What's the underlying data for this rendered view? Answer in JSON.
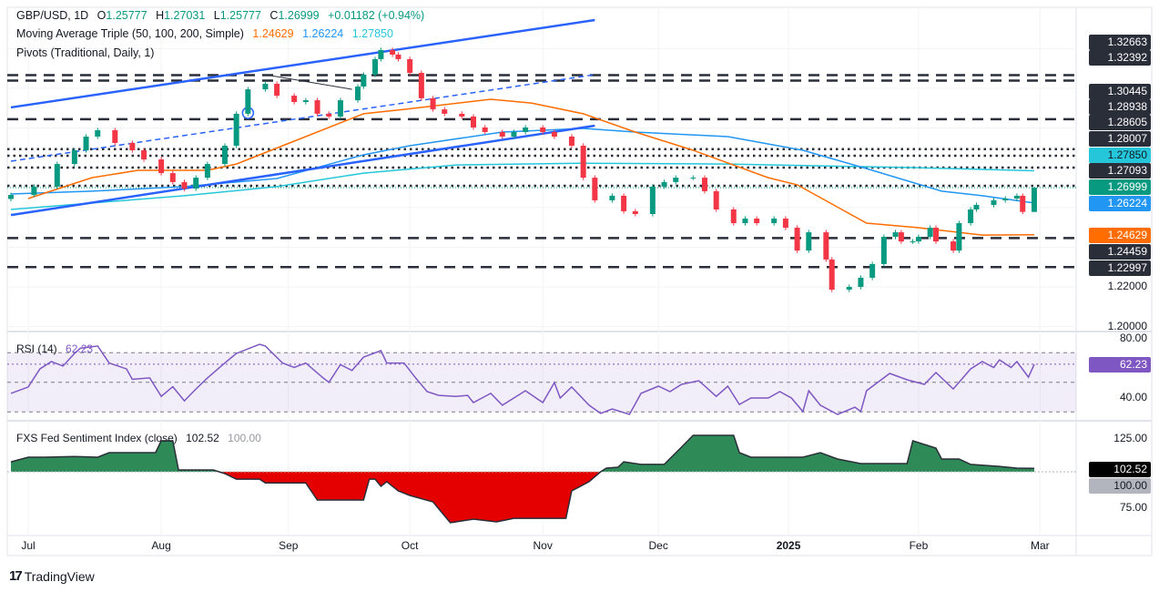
{
  "header": {
    "symbol": "GBP/USD, 1D",
    "open_label": "O",
    "open": "1.25777",
    "high_label": "H",
    "high": "1.27031",
    "low_label": "L",
    "low": "1.25777",
    "close_label": "C",
    "close": "1.26999",
    "change": "+0.01182 (+0.94%)",
    "ma_title": "Moving Average Triple (50, 100, 200, Simple)",
    "ma50": "1.24629",
    "ma100": "1.26224",
    "ma200": "1.27850",
    "pivots_title": "Pivots (Traditional, Daily, 1)"
  },
  "colors": {
    "up": "#089981",
    "down": "#f23645",
    "ma50": "#ff6d00",
    "ma100": "#2196f3",
    "ma200": "#26c6da",
    "rsi": "#7e57c2",
    "trend": "#2962ff"
  },
  "price_axis": {
    "labels": [
      {
        "text": "1.32663",
        "kind": "pivot"
      },
      {
        "text": "1.32392",
        "kind": "pivot"
      },
      {
        "text": "1.30445",
        "kind": "pivot"
      },
      {
        "text": "1.28938",
        "kind": "pivot"
      },
      {
        "text": "1.28605",
        "kind": "pivot"
      },
      {
        "text": "1.28007",
        "kind": "pivot"
      },
      {
        "text": "1.27850",
        "kind": "ma200"
      },
      {
        "text": "1.27093",
        "kind": "pivot"
      },
      {
        "text": "1.26999",
        "kind": "close"
      },
      {
        "text": "1.26224",
        "kind": "ma100"
      },
      {
        "text": "1.24629",
        "kind": "ma50"
      },
      {
        "text": "1.24459",
        "kind": "pivot"
      },
      {
        "text": "1.22997",
        "kind": "pivot"
      },
      {
        "text": "1.22000",
        "kind": "tick"
      },
      {
        "text": "1.20000",
        "kind": "tick"
      }
    ]
  },
  "rsi": {
    "title": "RSI (14)",
    "value": "62.23",
    "ticks": [
      "80.00",
      "40.00"
    ]
  },
  "sentiment": {
    "title": "FXS Fed Sentiment Index (close)",
    "value": "102.52",
    "baseline": "100.00",
    "ticks": [
      "125.00",
      "75.00"
    ]
  },
  "time_axis": {
    "labels": [
      "Jul",
      "Aug",
      "Sep",
      "Oct",
      "Nov",
      "Dec",
      "2025",
      "Feb",
      "Mar"
    ]
  },
  "branding": {
    "logo_text": "TradingView"
  },
  "chart_data": {
    "type": "candlestick",
    "title": "GBP/USD, 1D",
    "ylim": [
      1.19,
      1.35
    ],
    "months": [
      [
        "Jul",
        3
      ],
      [
        "Aug",
        26
      ],
      [
        "Sep",
        48
      ],
      [
        "Oct",
        69
      ],
      [
        "Nov",
        92
      ],
      [
        "Dec",
        112
      ],
      [
        "2025",
        134.5
      ],
      [
        "Feb",
        157
      ],
      [
        "Mar",
        178
      ]
    ],
    "closes": [
      [
        0,
        1.2663
      ],
      [
        4,
        1.2705
      ],
      [
        8,
        1.2819
      ],
      [
        11,
        1.2888
      ],
      [
        13,
        1.2957
      ],
      [
        15,
        1.2989
      ],
      [
        18,
        1.2925
      ],
      [
        21,
        1.2888
      ],
      [
        23,
        1.2842
      ],
      [
        26,
        1.2773
      ],
      [
        28,
        1.2728
      ],
      [
        30,
        1.2695
      ],
      [
        32,
        1.275
      ],
      [
        34,
        1.2819
      ],
      [
        37,
        1.2911
      ],
      [
        39,
        1.3072
      ],
      [
        41,
        1.3195
      ],
      [
        44,
        1.3223
      ],
      [
        46,
        1.3163
      ],
      [
        49,
        1.3131
      ],
      [
        51,
        1.314
      ],
      [
        53,
        1.3072
      ],
      [
        55,
        1.3058
      ],
      [
        57,
        1.314
      ],
      [
        60,
        1.3209
      ],
      [
        61,
        1.3269
      ],
      [
        63,
        1.3347
      ],
      [
        64,
        1.3393
      ],
      [
        66,
        1.337
      ],
      [
        67,
        1.3347
      ],
      [
        69,
        1.3278
      ],
      [
        71,
        1.315
      ],
      [
        73,
        1.3094
      ],
      [
        75,
        1.3072
      ],
      [
        78,
        1.3058
      ],
      [
        80,
        1.3003
      ],
      [
        82,
        1.298
      ],
      [
        85,
        1.2957
      ],
      [
        87,
        1.298
      ],
      [
        89,
        1.3003
      ],
      [
        92,
        1.298
      ],
      [
        94,
        1.2957
      ],
      [
        97,
        1.2911
      ],
      [
        99,
        1.275
      ],
      [
        101,
        1.2636
      ],
      [
        104,
        1.2659
      ],
      [
        106,
        1.2581
      ],
      [
        108,
        1.2567
      ],
      [
        111,
        1.2705
      ],
      [
        113,
        1.2728
      ],
      [
        115,
        1.275
      ],
      [
        118,
        1.275
      ],
      [
        120,
        1.2682
      ],
      [
        122,
        1.259
      ],
      [
        125,
        1.2521
      ],
      [
        127,
        1.2544
      ],
      [
        129,
        1.2521
      ],
      [
        132,
        1.2544
      ],
      [
        134,
        1.2498
      ],
      [
        136,
        1.2383
      ],
      [
        138,
        1.2475
      ],
      [
        141,
        1.2338
      ],
      [
        142,
        1.2186
      ],
      [
        145,
        1.22
      ],
      [
        147,
        1.2246
      ],
      [
        149,
        1.2315
      ],
      [
        151,
        1.2452
      ],
      [
        153,
        1.2475
      ],
      [
        154,
        1.2429
      ],
      [
        156,
        1.2429
      ],
      [
        157,
        1.2452
      ],
      [
        159,
        1.2498
      ],
      [
        160,
        1.2429
      ],
      [
        163,
        1.2383
      ],
      [
        164,
        1.2521
      ],
      [
        166,
        1.259
      ],
      [
        167,
        1.2613
      ],
      [
        170,
        1.2636
      ],
      [
        172,
        1.2645
      ],
      [
        174,
        1.2659
      ],
      [
        175,
        1.25777
      ],
      [
        177,
        1.26999
      ]
    ],
    "last_bar": {
      "open": 1.25777,
      "high": 1.27031,
      "low": 1.25777,
      "close": 1.26999
    },
    "ma50": [
      [
        3,
        1.2645
      ],
      [
        14,
        1.275
      ],
      [
        22,
        1.2787
      ],
      [
        34,
        1.2787
      ],
      [
        39,
        1.2819
      ],
      [
        49,
        1.2934
      ],
      [
        61,
        1.3072
      ],
      [
        68,
        1.3094
      ],
      [
        83,
        1.3145
      ],
      [
        90,
        1.3126
      ],
      [
        99,
        1.3072
      ],
      [
        108,
        1.298
      ],
      [
        118,
        1.2888
      ],
      [
        131,
        1.275
      ],
      [
        136,
        1.2714
      ],
      [
        148,
        1.2521
      ],
      [
        157,
        1.2498
      ],
      [
        168,
        1.2461
      ],
      [
        177,
        1.24629
      ]
    ],
    "ma100": [
      [
        0,
        1.2668
      ],
      [
        14,
        1.2682
      ],
      [
        30,
        1.2705
      ],
      [
        46,
        1.2746
      ],
      [
        61,
        1.2865
      ],
      [
        69,
        1.2911
      ],
      [
        85,
        1.298
      ],
      [
        99,
        1.2998
      ],
      [
        108,
        1.298
      ],
      [
        124,
        1.2957
      ],
      [
        137,
        1.2888
      ],
      [
        148,
        1.2796
      ],
      [
        161,
        1.2682
      ],
      [
        168,
        1.2659
      ],
      [
        177,
        1.26224
      ]
    ],
    "ma200": [
      [
        0,
        1.259
      ],
      [
        30,
        1.2659
      ],
      [
        46,
        1.2705
      ],
      [
        61,
        1.2773
      ],
      [
        77,
        1.2814
      ],
      [
        99,
        1.2823
      ],
      [
        124,
        1.2819
      ],
      [
        156,
        1.2801
      ],
      [
        177,
        1.2785
      ]
    ],
    "pivots": [
      {
        "level": 1.32663,
        "style": "dashed"
      },
      {
        "level": 1.32392,
        "style": "dashed"
      },
      {
        "level": 1.30445,
        "style": "dashed"
      },
      {
        "level": 1.28938,
        "style": "dotted"
      },
      {
        "level": 1.28605,
        "style": "dotted"
      },
      {
        "level": 1.28007,
        "style": "dotted"
      },
      {
        "level": 1.27093,
        "style": "dotted"
      },
      {
        "level": 1.24459,
        "style": "dashed"
      },
      {
        "level": 1.22997,
        "style": "dashed"
      }
    ],
    "trendlines": [
      {
        "from": [
          0,
          1.3104
        ],
        "to": [
          101,
          1.3544
        ],
        "style": "solid"
      },
      {
        "from": [
          0,
          1.2562
        ],
        "to": [
          101,
          1.3012
        ],
        "style": "solid"
      },
      {
        "from": [
          0,
          1.2833
        ],
        "to": [
          101,
          1.3269
        ],
        "style": "dashed"
      },
      {
        "from": [
          44,
          1.3269
        ],
        "to": [
          59,
          1.3195
        ],
        "style": "thin"
      }
    ],
    "marker": [
      41,
      1.3076
    ],
    "rsi_series": [
      [
        0,
        42.5
      ],
      [
        3,
        46.8
      ],
      [
        5,
        59
      ],
      [
        7,
        64
      ],
      [
        9,
        61
      ],
      [
        11,
        69.5
      ],
      [
        12,
        73
      ],
      [
        15,
        74.5
      ],
      [
        17,
        63
      ],
      [
        20,
        59
      ],
      [
        21,
        52
      ],
      [
        24,
        53
      ],
      [
        26,
        40.5
      ],
      [
        28,
        47
      ],
      [
        30,
        37.5
      ],
      [
        32,
        45.5
      ],
      [
        34,
        53
      ],
      [
        37,
        63
      ],
      [
        39,
        69.5
      ],
      [
        43,
        75.7
      ],
      [
        44,
        74.5
      ],
      [
        47,
        63
      ],
      [
        49,
        60
      ],
      [
        51,
        63
      ],
      [
        54,
        53
      ],
      [
        55,
        50
      ],
      [
        57,
        62
      ],
      [
        59,
        58
      ],
      [
        61,
        67
      ],
      [
        64,
        71.4
      ],
      [
        65,
        63
      ],
      [
        68,
        63
      ],
      [
        70,
        53
      ],
      [
        72,
        43.7
      ],
      [
        74,
        41.2
      ],
      [
        77,
        40.5
      ],
      [
        79,
        41.2
      ],
      [
        80,
        36.3
      ],
      [
        83,
        42.5
      ],
      [
        85,
        34.5
      ],
      [
        87,
        39.4
      ],
      [
        89,
        44.3
      ],
      [
        92,
        36.3
      ],
      [
        94,
        49.8
      ],
      [
        95,
        39.4
      ],
      [
        97,
        46.8
      ],
      [
        100,
        34.5
      ],
      [
        102,
        29
      ],
      [
        104,
        32
      ],
      [
        107,
        28.3
      ],
      [
        109,
        42.5
      ],
      [
        112,
        47.4
      ],
      [
        114,
        43.7
      ],
      [
        116,
        48.6
      ],
      [
        119,
        51.1
      ],
      [
        122,
        40.5
      ],
      [
        124,
        47.4
      ],
      [
        126,
        35
      ],
      [
        128,
        39.4
      ],
      [
        131,
        39.4
      ],
      [
        133,
        43.7
      ],
      [
        135,
        39.4
      ],
      [
        137,
        30.2
      ],
      [
        138,
        44.3
      ],
      [
        140,
        34.5
      ],
      [
        143,
        28.3
      ],
      [
        146,
        33.2
      ],
      [
        147,
        30.2
      ],
      [
        148,
        44.3
      ],
      [
        152,
        56
      ],
      [
        155,
        51.7
      ],
      [
        158,
        48.6
      ],
      [
        160,
        56.6
      ],
      [
        163,
        45.5
      ],
      [
        166,
        59
      ],
      [
        168,
        64
      ],
      [
        170,
        60
      ],
      [
        171,
        65.2
      ],
      [
        173,
        60
      ],
      [
        174,
        64
      ],
      [
        176,
        53.5
      ],
      [
        177,
        62.23
      ]
    ],
    "rsi_bands": [
      70,
      50,
      30
    ],
    "sentiment_series": [
      [
        0,
        107.2
      ],
      [
        3,
        110.5
      ],
      [
        6,
        110.5
      ],
      [
        11,
        111
      ],
      [
        15,
        110.5
      ],
      [
        17,
        113.8
      ],
      [
        25,
        113.8
      ],
      [
        26,
        122.4
      ],
      [
        28,
        122.4
      ],
      [
        29,
        101.3
      ],
      [
        35,
        101.3
      ],
      [
        37,
        98.7
      ],
      [
        39,
        94.7
      ],
      [
        43,
        94.7
      ],
      [
        44,
        92
      ],
      [
        51,
        92
      ],
      [
        53,
        79.6
      ],
      [
        61,
        79.6
      ],
      [
        62,
        94.7
      ],
      [
        63,
        94.7
      ],
      [
        64,
        89.5
      ],
      [
        65,
        92.8
      ],
      [
        67,
        86.2
      ],
      [
        69,
        82.9
      ],
      [
        73,
        78.3
      ],
      [
        76,
        63.2
      ],
      [
        80,
        65.8
      ],
      [
        84,
        63.8
      ],
      [
        87,
        66.4
      ],
      [
        96,
        66.4
      ],
      [
        97,
        86.2
      ],
      [
        100,
        92.8
      ],
      [
        102,
        100
      ],
      [
        103,
        102.6
      ],
      [
        105,
        103.3
      ],
      [
        106,
        107.2
      ],
      [
        109,
        105.3
      ],
      [
        113,
        105.3
      ],
      [
        116,
        117.8
      ],
      [
        118,
        126.3
      ],
      [
        125,
        126.3
      ],
      [
        126,
        113.8
      ],
      [
        128,
        110.5
      ],
      [
        137,
        110.5
      ],
      [
        140,
        113.8
      ],
      [
        143,
        109.2
      ],
      [
        147,
        105.9
      ],
      [
        155,
        105.9
      ],
      [
        156,
        122.4
      ],
      [
        160,
        117.1
      ],
      [
        161,
        109.2
      ],
      [
        164,
        109.2
      ],
      [
        166,
        105.3
      ],
      [
        171,
        103.9
      ],
      [
        174,
        102.6
      ],
      [
        177,
        102.52
      ]
    ],
    "sentiment_baseline": 100
  }
}
